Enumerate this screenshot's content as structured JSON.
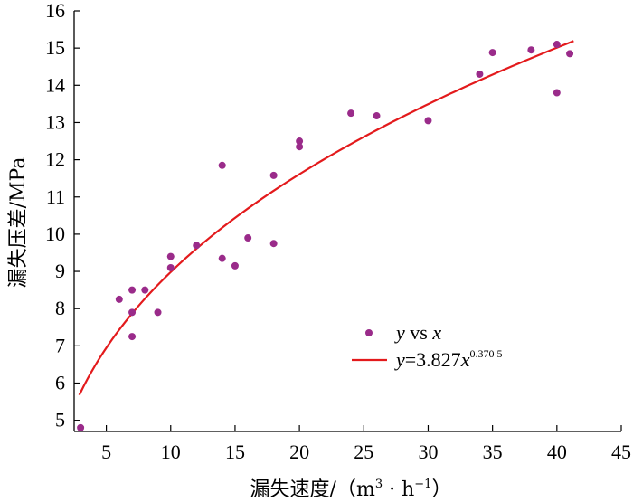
{
  "chart_data": {
    "type": "scatter",
    "title": "",
    "xlabel_main": "漏失速度/",
    "xlabel_unit_open": "（m",
    "xlabel_unit_sup1": "3",
    "xlabel_unit_mid": " · h",
    "xlabel_unit_sup2": "−1",
    "xlabel_unit_close": "）",
    "ylabel": "漏失压差/MPa",
    "xlim": [
      2.5,
      45
    ],
    "ylim": [
      4.7,
      16
    ],
    "xticks": [
      5,
      10,
      15,
      20,
      25,
      30,
      35,
      40,
      45
    ],
    "yticks": [
      5,
      6,
      7,
      8,
      9,
      10,
      11,
      12,
      13,
      14,
      15,
      16
    ],
    "grid": false,
    "legend_position": "lower-right",
    "series": [
      {
        "name": "y vs x",
        "kind": "scatter",
        "color": "#9a2b8a",
        "x": [
          3,
          6,
          7,
          7,
          7,
          8,
          9,
          10,
          10,
          12,
          14,
          14,
          15,
          16,
          18,
          18,
          20,
          20,
          24,
          26,
          30,
          34,
          35,
          38,
          40,
          40,
          41
        ],
        "y": [
          4.8,
          8.25,
          8.5,
          7.9,
          7.25,
          8.5,
          7.9,
          9.4,
          9.1,
          9.7,
          11.85,
          9.35,
          9.15,
          9.9,
          11.58,
          9.75,
          12.5,
          12.35,
          13.25,
          13.18,
          13.05,
          14.3,
          14.88,
          14.95,
          15.1,
          13.8,
          14.85
        ]
      },
      {
        "name": "y=3.827x^0.3705",
        "kind": "line",
        "color": "#e31a1c",
        "x_start": 2.9,
        "x_end": 41.3,
        "equation": {
          "a": 3.827,
          "b": 0.3705
        }
      }
    ],
    "legend": {
      "scatter_label_var": "y",
      "scatter_label_mid": " vs ",
      "scatter_label_var2": "x",
      "fit_label_var": "y",
      "fit_label_mid": "=3.827",
      "fit_label_var2": "x",
      "fit_label_exp": "0.370 5"
    }
  }
}
